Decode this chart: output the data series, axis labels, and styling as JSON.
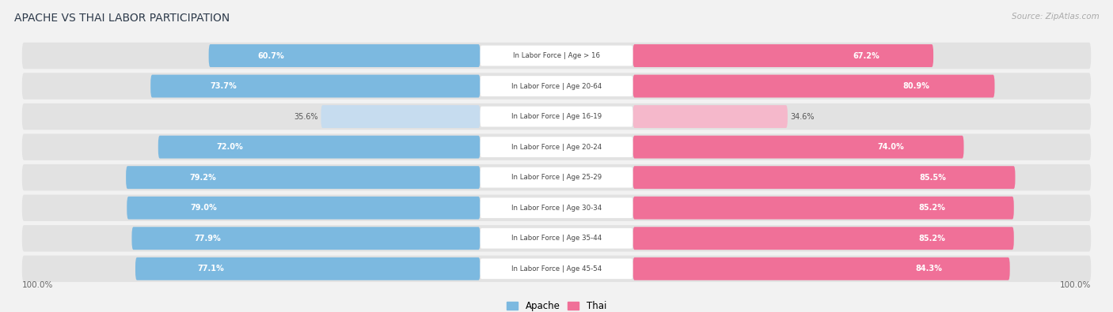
{
  "title": "APACHE VS THAI LABOR PARTICIPATION",
  "source": "Source: ZipAtlas.com",
  "categories": [
    "In Labor Force | Age > 16",
    "In Labor Force | Age 20-64",
    "In Labor Force | Age 16-19",
    "In Labor Force | Age 20-24",
    "In Labor Force | Age 25-29",
    "In Labor Force | Age 30-34",
    "In Labor Force | Age 35-44",
    "In Labor Force | Age 45-54"
  ],
  "apache_values": [
    60.7,
    73.7,
    35.6,
    72.0,
    79.2,
    79.0,
    77.9,
    77.1
  ],
  "thai_values": [
    67.2,
    80.9,
    34.6,
    74.0,
    85.5,
    85.2,
    85.2,
    84.3
  ],
  "apache_color": "#7cb9e0",
  "apache_light_color": "#c6dcef",
  "thai_color": "#f07098",
  "thai_light_color": "#f5b8cb",
  "bg_color": "#f2f2f2",
  "row_bg_color": "#e2e2e2",
  "figsize": [
    14.06,
    3.95
  ],
  "dpi": 100
}
